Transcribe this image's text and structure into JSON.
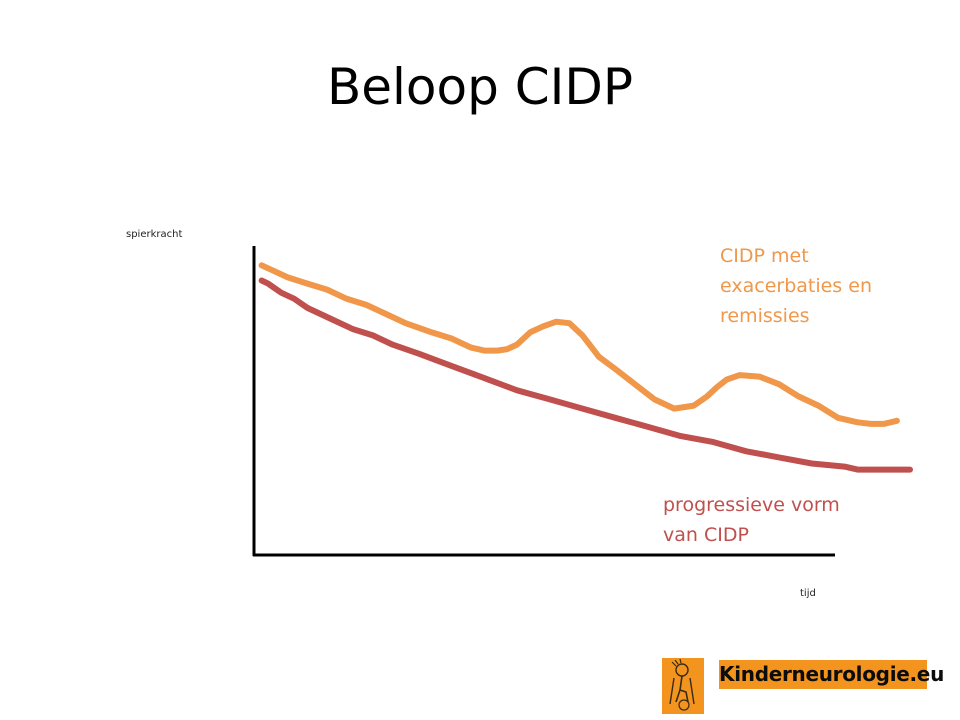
{
  "slide": {
    "title": "Beloop CIDP"
  },
  "colors": {
    "exacerbation": "#f0974a",
    "progressive": "#c0504d",
    "axis": "#000000",
    "logo_bg": "#f3941e"
  },
  "logo": {
    "text": "Kinderneurologie.eu",
    "icon": "child-with-crutches-icon"
  },
  "chart_data": {
    "type": "line",
    "title": "Beloop CIDP",
    "xlabel": "tijd",
    "ylabel": "spierkracht",
    "xlim": [
      0,
      100
    ],
    "ylim": [
      0,
      100
    ],
    "grid": false,
    "axis_ticks": false,
    "series": [
      {
        "name": "CIDP met exacerbaties en remissies",
        "label_lines": [
          "CIDP met",
          "exacerbaties en",
          "remissies"
        ],
        "color": "#f0974a",
        "x": [
          1,
          3,
          5,
          8,
          11,
          14,
          17,
          20,
          23,
          27,
          30,
          33,
          35,
          37,
          38.5,
          40,
          42,
          44,
          46,
          48,
          50,
          52.5,
          55,
          58,
          61,
          64,
          67,
          69,
          70.5,
          72,
          74,
          77,
          80,
          83,
          86,
          89,
          92,
          94,
          96,
          98
        ],
        "y": [
          95,
          93,
          91,
          89,
          87,
          84,
          82,
          79,
          76,
          73,
          71,
          68,
          67,
          67,
          67.5,
          69,
          73,
          75,
          76.5,
          76,
          72,
          65,
          61,
          56,
          51,
          48,
          49,
          52,
          55,
          57.5,
          59,
          58.5,
          56,
          52,
          49,
          45,
          43.5,
          43,
          43,
          44
        ]
      },
      {
        "name": "progressieve vorm van CIDP",
        "label_lines": [
          "progressieve vorm",
          "van CIDP"
        ],
        "color": "#c0504d",
        "x": [
          1,
          2,
          4,
          6,
          8,
          10,
          12,
          15,
          18,
          21,
          25,
          30,
          35,
          40,
          45,
          50,
          55,
          60,
          65,
          70,
          75,
          80,
          85,
          90,
          92,
          95,
          100
        ],
        "y": [
          90,
          89,
          86,
          84,
          81,
          79,
          77,
          74,
          72,
          69,
          66,
          62,
          58,
          54,
          51,
          48,
          45,
          42,
          39,
          37,
          34,
          32,
          30,
          29,
          28,
          28,
          28
        ]
      }
    ]
  }
}
